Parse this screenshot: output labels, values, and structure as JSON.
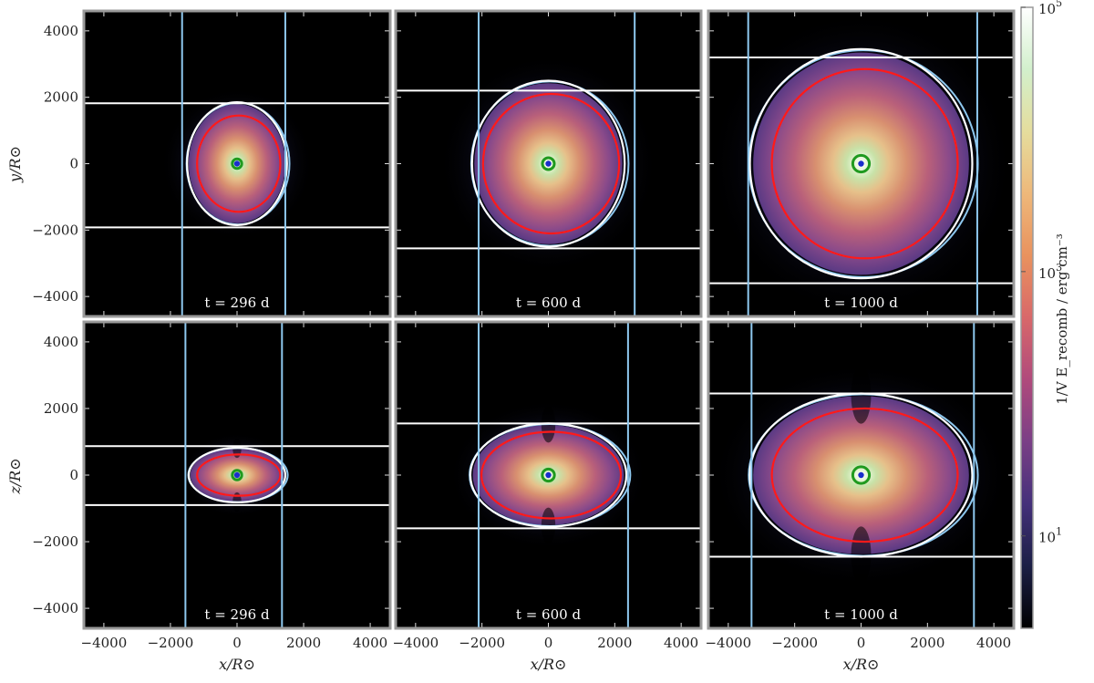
{
  "chart_data": {
    "type": "heatmap",
    "title": "",
    "xlabel": "x/R⊙",
    "ylabel_top": "y/R⊙",
    "ylabel_bottom": "z/R⊙",
    "xlim": [
      -4600,
      4600
    ],
    "ylim": [
      -4600,
      4600
    ],
    "x_ticks": [
      -4000,
      -2000,
      0,
      2000,
      4000
    ],
    "y_ticks": [
      -4000,
      -2000,
      0,
      2000,
      4000
    ],
    "tick_labels": [
      "−4000",
      "−2000",
      "0",
      "2000",
      "4000"
    ],
    "colorbar": {
      "scale": "log",
      "ticks": [
        10,
        1000,
        100000
      ],
      "tick_labels": [
        "10",
        "10",
        "10"
      ],
      "tick_exps": [
        "1",
        "3",
        "5"
      ],
      "label": "1/V E_recomb / erg cm⁻³",
      "colors": [
        "#000000",
        "#1b1f45",
        "#44307a",
        "#7a3f86",
        "#b04a7c",
        "#d8686a",
        "#e9925e",
        "#eeb87a",
        "#e5dd9d",
        "#d2f0cc",
        "#ffffff"
      ]
    },
    "panels": [
      {
        "id": "xy_296",
        "row": "xy",
        "label": "t = 296 d",
        "white_lines": [
          1820,
          -1920
        ],
        "blue_lines": [
          -1650,
          1450
        ],
        "outer": {
          "rx": 1500,
          "ry": 1850
        },
        "red": {
          "rx": 1250,
          "ry": 1450
        },
        "glow": 2300
      },
      {
        "id": "xy_600",
        "row": "xy",
        "label": "t = 600 d",
        "white_lines": [
          2200,
          -2550
        ],
        "blue_lines": [
          -2100,
          2600
        ],
        "outer": {
          "rx": 2300,
          "ry": 2500
        },
        "red": {
          "rx": 2050,
          "ry": 2100
        },
        "glow": 3300
      },
      {
        "id": "xy_1000",
        "row": "xy",
        "label": "t = 1000 d",
        "white_lines": [
          3200,
          -3600
        ],
        "blue_lines": [
          -3400,
          3500
        ],
        "outer": {
          "rx": 3350,
          "ry": 3450
        },
        "red": {
          "rx": 2800,
          "ry": 2850
        },
        "glow": 4600
      },
      {
        "id": "xz_296",
        "row": "xz",
        "label": "t = 296 d",
        "white_lines": [
          870,
          -900
        ],
        "blue_lines": [
          -1550,
          1350
        ],
        "outer": {
          "rx": 1450,
          "ry": 820
        },
        "red": {
          "rx": 1250,
          "ry": 620
        },
        "glow": 1700
      },
      {
        "id": "xz_600",
        "row": "xz",
        "label": "t = 600 d",
        "white_lines": [
          1550,
          -1600
        ],
        "blue_lines": [
          -2100,
          2400
        ],
        "outer": {
          "rx": 2350,
          "ry": 1550
        },
        "red": {
          "rx": 2100,
          "ry": 1300
        },
        "glow": 3000
      },
      {
        "id": "xz_1000",
        "row": "xz",
        "label": "t = 1000 d",
        "white_lines": [
          2450,
          -2450
        ],
        "blue_lines": [
          -3300,
          3400
        ],
        "outer": {
          "rx": 3350,
          "ry": 2450
        },
        "red": {
          "rx": 2800,
          "ry": 2000
        },
        "glow": 4500
      }
    ]
  }
}
